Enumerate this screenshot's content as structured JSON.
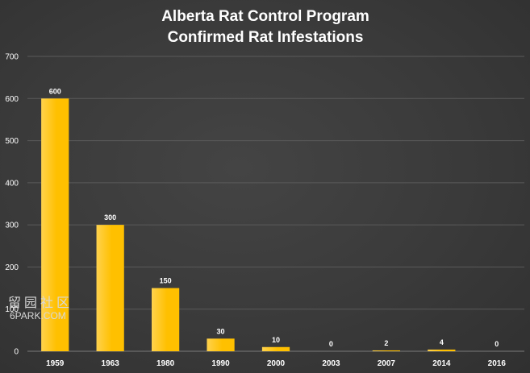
{
  "chart_data": {
    "type": "bar",
    "title": [
      "Alberta Rat Control Program",
      "Confirmed Rat Infestations"
    ],
    "categories": [
      "1959",
      "1963",
      "1980",
      "1990",
      "2000",
      "2003",
      "2007",
      "2014",
      "2016"
    ],
    "values": [
      600,
      300,
      150,
      30,
      10,
      0,
      2,
      4,
      0
    ],
    "data_labels": [
      "600",
      "300",
      "150",
      "30",
      "10",
      "0",
      "2",
      "4",
      "0"
    ],
    "ylim": [
      0,
      700
    ],
    "yticks": [
      0,
      100,
      200,
      300,
      400,
      500,
      600,
      700
    ],
    "xlabel": "",
    "ylabel": "",
    "grid": true,
    "legend": "none",
    "bar_color": "#ffc000",
    "bar_color_light": "#ffd24d",
    "grid_color": "#5a5a5a",
    "text_color": "#ffffff"
  },
  "watermark": {
    "text": "留园社区",
    "subtext": "6PARK.COM"
  }
}
